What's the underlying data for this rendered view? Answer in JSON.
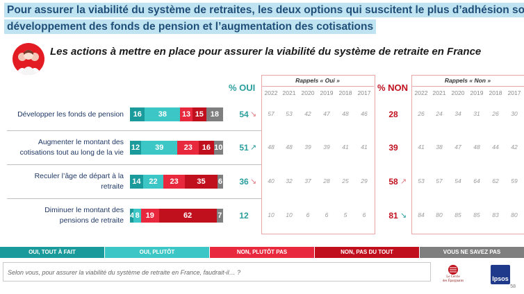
{
  "header": {
    "title_line1": "Pour assurer la viabilité du système de retraites, les deux options qui suscitent le plus d’adhésion sont le",
    "title_line2": "développement des fonds de pension et l’augmentation des cotisations",
    "subtitle": "Les actions à mettre en place pour assurer la viabilité du système de retraite en France"
  },
  "columns": {
    "oui_header": "% OUI",
    "non_header": "% NON",
    "recall_oui_title": "Rappels « Oui »",
    "recall_non_title": "Rappels « Non »",
    "years": [
      "2022",
      "2021",
      "2020",
      "2019",
      "2018",
      "2017"
    ]
  },
  "chart_data": {
    "type": "bar",
    "stacked": true,
    "orientation": "horizontal",
    "categories": [
      "Développer les fonds de pension",
      "Augmenter le montant des cotisations tout au long de la vie",
      "Reculer l’âge de départ à la retraite",
      "Diminuer le montant des pensions de retraite"
    ],
    "series": [
      {
        "name": "OUI, TOUT À FAIT",
        "color": "#1a9a9a",
        "values": [
          16,
          12,
          14,
          4
        ]
      },
      {
        "name": "OUI, PLUTÔT",
        "color": "#3cc6c6",
        "values": [
          38,
          39,
          22,
          8
        ]
      },
      {
        "name": "NON, PLUTÔT PAS",
        "color": "#e8283c",
        "values": [
          13,
          23,
          23,
          19
        ]
      },
      {
        "name": "NON, PAS DU TOUT",
        "color": "#c0101e",
        "values": [
          15,
          16,
          35,
          62
        ]
      },
      {
        "name": "VOUS NE SAVEZ PAS",
        "color": "#7f7f7f",
        "values": [
          18,
          10,
          6,
          7
        ]
      }
    ],
    "oui_totals": [
      54,
      51,
      36,
      12
    ],
    "non_totals": [
      28,
      39,
      58,
      81
    ],
    "oui_trend": [
      "down",
      "up",
      "down",
      ""
    ],
    "non_trend": [
      "",
      "",
      "up",
      "down"
    ],
    "recall_oui": [
      [
        "57",
        "53",
        "42",
        "47",
        "48",
        "46"
      ],
      [
        "48",
        "48",
        "39",
        "39",
        "41",
        "41"
      ],
      [
        "40",
        "32",
        "37",
        "28",
        "25",
        "29"
      ],
      [
        "10",
        "10",
        "6",
        "6",
        "5",
        "6"
      ]
    ],
    "recall_non": [
      [
        "26",
        "24",
        "34",
        "31",
        "26",
        "30"
      ],
      [
        "41",
        "38",
        "47",
        "48",
        "44",
        "42"
      ],
      [
        "53",
        "57",
        "54",
        "64",
        "62",
        "59"
      ],
      [
        "84",
        "80",
        "85",
        "85",
        "83",
        "80"
      ]
    ]
  },
  "row_labels": [
    [
      "Développer les fonds de pension"
    ],
    [
      "Augmenter le montant des",
      "cotisations tout au long de la vie"
    ],
    [
      "Reculer l’âge de départ à la",
      "retraite"
    ],
    [
      "Diminuer le montant des",
      "pensions de retraite"
    ]
  ],
  "footer": {
    "question": "Selon vous, pour assurer la viabilité du système de retraite en France, faudrait-il… ?",
    "brand1_line1": "Le Cercle",
    "brand1_line2": "des Épargnants",
    "brand2": "Ipsos",
    "page_number": "58"
  },
  "colors": {
    "title_band": "#bfe3f0",
    "title_text": "#1f4e79",
    "oui": "#2a9d9d",
    "non": "#c0101e"
  }
}
